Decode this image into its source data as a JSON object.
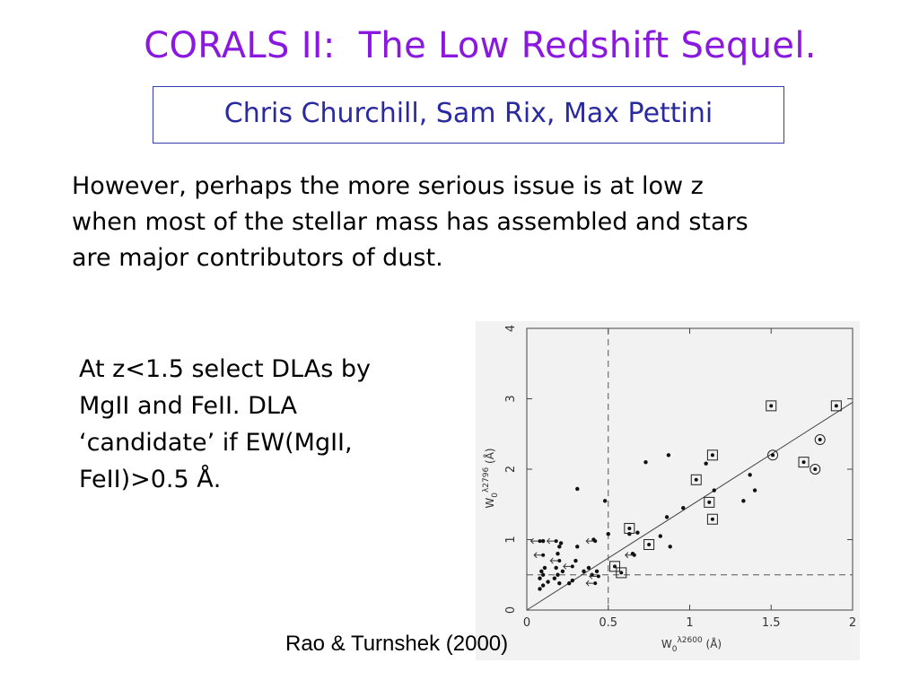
{
  "slide": {
    "title": "CORALS II:  The Low Redshift Sequel.",
    "authors": "Chris Churchill, Sam Rix, Max Pettini",
    "paragraph_lines": [
      "However, perhaps the more serious issue is at low z",
      "when most of the stellar mass has assembled and stars",
      "are major contributors of dust."
    ],
    "side_text_lines": [
      "At z<1.5 select DLAs by",
      "MgII and FeII.  DLA",
      "‘candidate’ if EW(MgII,",
      "FeII)>0.5 Å."
    ],
    "caption": "Rao & Turnshek (2000)"
  },
  "chart_data": {
    "type": "scatter",
    "xlabel": {
      "base": "W",
      "sub": "0",
      "sup": "λ2600",
      "unit": "(Å)"
    },
    "ylabel": {
      "base": "W",
      "sub": "0",
      "sup": "λ2796",
      "unit": "(Å)"
    },
    "xlim": [
      0,
      2
    ],
    "ylim": [
      0,
      4
    ],
    "x_ticks": [
      "0",
      "0.5",
      "1",
      "1.5",
      "2"
    ],
    "y_ticks": [
      "0",
      "1",
      "2",
      "3",
      "4"
    ],
    "x_ticks_values": [
      0,
      0.5,
      1,
      1.5,
      2
    ],
    "y_ticks_values": [
      0,
      1,
      2,
      3,
      4
    ],
    "cut_x": 0.5,
    "cut_y": 0.5,
    "fit_line": {
      "x": [
        0,
        2
      ],
      "y": [
        0,
        2.95
      ]
    },
    "points": [
      {
        "x": 0.08,
        "y": 0.3
      },
      {
        "x": 0.1,
        "y": 0.35
      },
      {
        "x": 0.08,
        "y": 0.45
      },
      {
        "x": 0.1,
        "y": 0.5
      },
      {
        "x": 0.09,
        "y": 0.55
      },
      {
        "x": 0.11,
        "y": 0.6
      },
      {
        "x": 0.1,
        "y": 0.98
      },
      {
        "x": 0.13,
        "y": 0.4
      },
      {
        "x": 0.17,
        "y": 0.45
      },
      {
        "x": 0.19,
        "y": 0.5
      },
      {
        "x": 0.18,
        "y": 0.6
      },
      {
        "x": 0.2,
        "y": 0.38
      },
      {
        "x": 0.2,
        "y": 0.9
      },
      {
        "x": 0.21,
        "y": 0.95
      },
      {
        "x": 0.19,
        "y": 0.8
      },
      {
        "x": 0.22,
        "y": 0.55
      },
      {
        "x": 0.26,
        "y": 0.38
      },
      {
        "x": 0.28,
        "y": 0.42
      },
      {
        "x": 0.31,
        "y": 0.9
      },
      {
        "x": 0.3,
        "y": 0.7
      },
      {
        "x": 0.31,
        "y": 1.72
      },
      {
        "x": 0.35,
        "y": 0.55
      },
      {
        "x": 0.38,
        "y": 0.6
      },
      {
        "x": 0.4,
        "y": 0.5
      },
      {
        "x": 0.41,
        "y": 1.0
      },
      {
        "x": 0.43,
        "y": 0.55
      },
      {
        "x": 0.48,
        "y": 1.55
      },
      {
        "x": 0.5,
        "y": 1.08
      },
      {
        "x": 0.63,
        "y": 1.08
      },
      {
        "x": 0.65,
        "y": 0.8
      },
      {
        "x": 0.68,
        "y": 1.1
      },
      {
        "x": 0.73,
        "y": 2.1
      },
      {
        "x": 0.82,
        "y": 1.05
      },
      {
        "x": 0.86,
        "y": 1.32
      },
      {
        "x": 0.87,
        "y": 2.2
      },
      {
        "x": 0.88,
        "y": 0.9
      },
      {
        "x": 0.96,
        "y": 1.45
      },
      {
        "x": 1.1,
        "y": 2.08
      },
      {
        "x": 1.15,
        "y": 1.7
      },
      {
        "x": 1.33,
        "y": 1.55
      },
      {
        "x": 1.37,
        "y": 1.92
      },
      {
        "x": 1.4,
        "y": 1.7
      }
    ],
    "upper_limits": [
      {
        "x": 0.08,
        "y": 0.98
      },
      {
        "x": 0.18,
        "y": 0.98
      },
      {
        "x": 0.1,
        "y": 0.78
      },
      {
        "x": 0.2,
        "y": 0.7
      },
      {
        "x": 0.28,
        "y": 0.62
      },
      {
        "x": 0.42,
        "y": 0.98
      },
      {
        "x": 0.44,
        "y": 0.48
      },
      {
        "x": 0.42,
        "y": 0.38
      },
      {
        "x": 0.66,
        "y": 0.78
      }
    ],
    "boxed_points": [
      {
        "x": 0.54,
        "y": 0.62
      },
      {
        "x": 0.58,
        "y": 0.53
      },
      {
        "x": 0.63,
        "y": 1.16
      },
      {
        "x": 0.75,
        "y": 0.93
      },
      {
        "x": 1.04,
        "y": 1.85
      },
      {
        "x": 1.12,
        "y": 1.53
      },
      {
        "x": 1.14,
        "y": 1.29
      },
      {
        "x": 1.14,
        "y": 2.2
      },
      {
        "x": 1.5,
        "y": 2.9
      },
      {
        "x": 1.7,
        "y": 2.1
      },
      {
        "x": 1.9,
        "y": 2.9
      }
    ],
    "circled_points": [
      {
        "x": 1.51,
        "y": 2.2
      },
      {
        "x": 1.77,
        "y": 2.0
      },
      {
        "x": 1.8,
        "y": 2.42
      }
    ]
  }
}
